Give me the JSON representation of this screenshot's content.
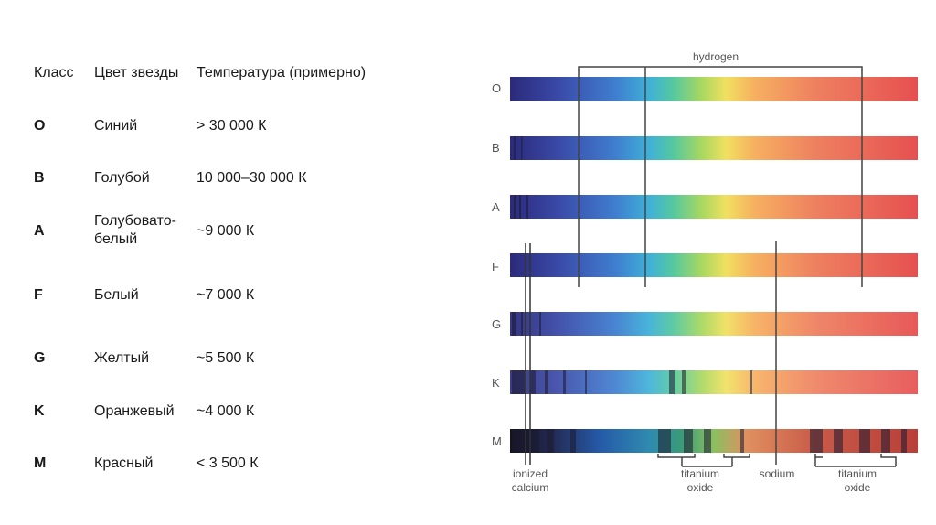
{
  "table": {
    "headers": [
      "Класс",
      "Цвет звезды",
      "Температура (примерно)"
    ],
    "rows": [
      {
        "cls": "O",
        "color": "Синий",
        "temp": "> 30 000 К"
      },
      {
        "cls": "B",
        "color": "Голубой",
        "temp": "10 000–30 000 К"
      },
      {
        "cls": "A",
        "color": "Голубовато-белый",
        "temp": "~9 000 К"
      },
      {
        "cls": "F",
        "color": "Белый",
        "temp": "~7 000 К"
      },
      {
        "cls": "G",
        "color": "Желтый",
        "temp": "~5 500 К"
      },
      {
        "cls": "K",
        "color": "Оранжевый",
        "temp": "~4 000 К"
      },
      {
        "cls": "M",
        "color": "Красный",
        "temp": "< 3 500 К"
      }
    ]
  },
  "spectra": {
    "classes": [
      "O",
      "B",
      "A",
      "F",
      "G",
      "K",
      "M"
    ],
    "labels": {
      "hydrogen": "hydrogen",
      "ionized_calcium": "ionized calcium",
      "titanium_oxide_1": "titanium oxide",
      "sodium": "sodium",
      "titanium_oxide_2": "titanium oxide"
    }
  }
}
